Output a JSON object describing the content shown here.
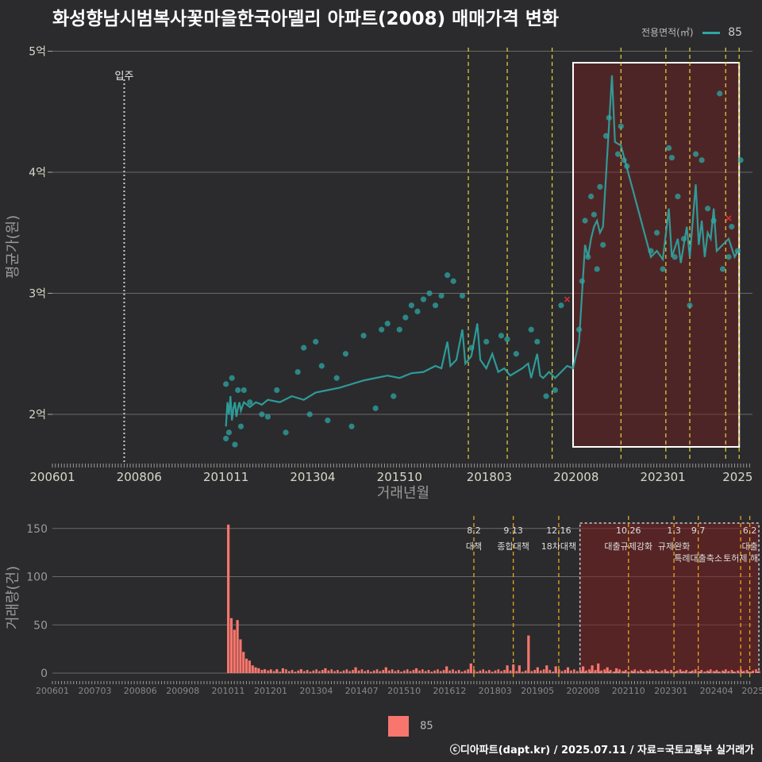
{
  "chart_data": [
    {
      "type": "scatter",
      "title": "화성향남시범복사꽃마을한국아델리 아파트(2008) 매매가격 변화",
      "xlabel": "거래년월",
      "ylabel": "평균가(원)",
      "ylim": [
        1.6,
        5.05
      ],
      "x_tick_labels": [
        "200601",
        "200806",
        "201011",
        "201304",
        "201510",
        "201803",
        "202008",
        "202301",
        "2025"
      ],
      "x_tick_months": [
        0,
        29,
        58,
        87,
        116,
        146,
        175,
        204,
        229
      ],
      "y_ticks": [
        {
          "v": 2,
          "label": "2억"
        },
        {
          "v": 3,
          "label": "3억"
        },
        {
          "v": 4,
          "label": "4억"
        },
        {
          "v": 5,
          "label": "5억"
        }
      ],
      "legend_title": "전용면적(㎡)",
      "legend_label": "85",
      "annotation": {
        "label": "입주",
        "month": 24
      },
      "highlight_range_months": [
        174,
        229.5
      ],
      "policy_lines_months": [
        139,
        152,
        167,
        190,
        205,
        213,
        225,
        229.5
      ],
      "series": [
        {
          "name": "85",
          "line_points": [
            [
              58,
              1.9
            ],
            [
              58.5,
              2.1
            ],
            [
              59,
              2.0
            ],
            [
              59.5,
              2.15
            ],
            [
              60,
              1.95
            ],
            [
              60.5,
              2.05
            ],
            [
              61,
              2.1
            ],
            [
              61.5,
              1.98
            ],
            [
              62,
              2.05
            ],
            [
              62.5,
              2.1
            ],
            [
              63,
              2.03
            ],
            [
              64,
              2.1
            ],
            [
              66,
              2.06
            ],
            [
              68,
              2.1
            ],
            [
              70,
              2.08
            ],
            [
              72,
              2.12
            ],
            [
              76,
              2.1
            ],
            [
              80,
              2.15
            ],
            [
              84,
              2.12
            ],
            [
              88,
              2.18
            ],
            [
              92,
              2.2
            ],
            [
              96,
              2.22
            ],
            [
              100,
              2.25
            ],
            [
              104,
              2.28
            ],
            [
              108,
              2.3
            ],
            [
              112,
              2.32
            ],
            [
              116,
              2.3
            ],
            [
              120,
              2.34
            ],
            [
              124,
              2.35
            ],
            [
              128,
              2.4
            ],
            [
              130,
              2.38
            ],
            [
              132,
              2.6
            ],
            [
              133,
              2.4
            ],
            [
              135,
              2.45
            ],
            [
              137,
              2.7
            ],
            [
              138,
              2.42
            ],
            [
              140,
              2.48
            ],
            [
              142,
              2.75
            ],
            [
              143,
              2.45
            ],
            [
              145,
              2.38
            ],
            [
              147,
              2.5
            ],
            [
              149,
              2.35
            ],
            [
              151,
              2.38
            ],
            [
              153,
              2.32
            ],
            [
              155,
              2.35
            ],
            [
              157,
              2.38
            ],
            [
              159,
              2.42
            ],
            [
              160,
              2.3
            ],
            [
              162,
              2.5
            ],
            [
              163,
              2.32
            ],
            [
              164,
              2.3
            ],
            [
              166,
              2.35
            ],
            [
              168,
              2.3
            ],
            [
              170,
              2.35
            ],
            [
              172,
              2.4
            ],
            [
              174,
              2.38
            ],
            [
              176,
              2.6
            ],
            [
              177,
              3.0
            ],
            [
              178,
              3.4
            ],
            [
              179,
              3.3
            ],
            [
              180,
              3.45
            ],
            [
              181,
              3.55
            ],
            [
              182,
              3.6
            ],
            [
              183,
              3.5
            ],
            [
              184,
              3.55
            ],
            [
              187,
              4.8
            ],
            [
              188,
              4.25
            ],
            [
              190,
              4.22
            ],
            [
              200,
              3.3
            ],
            [
              202,
              3.35
            ],
            [
              204,
              3.28
            ],
            [
              206,
              3.7
            ],
            [
              207,
              3.3
            ],
            [
              209,
              3.45
            ],
            [
              210,
              3.25
            ],
            [
              212,
              3.55
            ],
            [
              213,
              3.3
            ],
            [
              215,
              3.9
            ],
            [
              216,
              3.4
            ],
            [
              217,
              3.6
            ],
            [
              218,
              3.3
            ],
            [
              219,
              3.5
            ],
            [
              220,
              3.45
            ],
            [
              221,
              3.7
            ],
            [
              222,
              3.35
            ],
            [
              224,
              3.4
            ],
            [
              226,
              3.45
            ],
            [
              228,
              3.3
            ],
            [
              229,
              3.35
            ]
          ],
          "scatter_points": [
            [
              58,
              1.8
            ],
            [
              58,
              2.25
            ],
            [
              59,
              1.85
            ],
            [
              60,
              2.3
            ],
            [
              61,
              1.75
            ],
            [
              62,
              2.2
            ],
            [
              63,
              1.9
            ],
            [
              64,
              2.2
            ],
            [
              66,
              2.1
            ],
            [
              70,
              2.0
            ],
            [
              72,
              1.98
            ],
            [
              75,
              2.2
            ],
            [
              78,
              1.85
            ],
            [
              82,
              2.35
            ],
            [
              84,
              2.55
            ],
            [
              86,
              2.0
            ],
            [
              88,
              2.6
            ],
            [
              90,
              2.4
            ],
            [
              92,
              1.95
            ],
            [
              95,
              2.3
            ],
            [
              98,
              2.5
            ],
            [
              100,
              1.9
            ],
            [
              104,
              2.65
            ],
            [
              108,
              2.05
            ],
            [
              110,
              2.7
            ],
            [
              112,
              2.75
            ],
            [
              114,
              2.15
            ],
            [
              116,
              2.7
            ],
            [
              118,
              2.8
            ],
            [
              120,
              2.9
            ],
            [
              122,
              2.85
            ],
            [
              124,
              2.95
            ],
            [
              126,
              3.0
            ],
            [
              128,
              2.9
            ],
            [
              130,
              2.98
            ],
            [
              132,
              3.15
            ],
            [
              134,
              3.1
            ],
            [
              137,
              2.98
            ],
            [
              140,
              2.55
            ],
            [
              145,
              2.6
            ],
            [
              150,
              2.65
            ],
            [
              152,
              2.62
            ],
            [
              155,
              2.5
            ],
            [
              160,
              2.7
            ],
            [
              162,
              2.6
            ],
            [
              165,
              2.15
            ],
            [
              168,
              2.2
            ],
            [
              170,
              2.9
            ],
            [
              176,
              2.7
            ],
            [
              177,
              3.1
            ],
            [
              178,
              3.6
            ],
            [
              179,
              3.3
            ],
            [
              180,
              3.8
            ],
            [
              181,
              3.65
            ],
            [
              182,
              3.2
            ],
            [
              183,
              3.88
            ],
            [
              184,
              3.4
            ],
            [
              185,
              4.3
            ],
            [
              186,
              4.45
            ],
            [
              189,
              4.15
            ],
            [
              190,
              4.38
            ],
            [
              191,
              4.1
            ],
            [
              192,
              4.05
            ],
            [
              200,
              3.35
            ],
            [
              202,
              3.5
            ],
            [
              204,
              3.2
            ],
            [
              206,
              4.2
            ],
            [
              207,
              4.12
            ],
            [
              208,
              3.3
            ],
            [
              209,
              3.8
            ],
            [
              211,
              3.45
            ],
            [
              213,
              2.9
            ],
            [
              215,
              4.15
            ],
            [
              217,
              4.1
            ],
            [
              219,
              3.7
            ],
            [
              221,
              3.6
            ],
            [
              223,
              4.65
            ],
            [
              224,
              3.2
            ],
            [
              226,
              3.3
            ],
            [
              227,
              3.55
            ],
            [
              229,
              3.35
            ],
            [
              230,
              4.1
            ]
          ],
          "red_markers": [
            [
              172,
              2.95
            ],
            [
              226,
              3.62
            ]
          ]
        }
      ]
    },
    {
      "type": "bar",
      "ylabel": "거래량(건)",
      "ylim": [
        0,
        160
      ],
      "y_ticks": [
        0,
        50,
        100,
        150
      ],
      "x_tick_labels": [
        "200601",
        "200703",
        "200806",
        "200908",
        "201011",
        "201201",
        "201304",
        "201407",
        "201510",
        "201612",
        "201803",
        "201905",
        "202008",
        "202110",
        "202301",
        "202404",
        "2025"
      ],
      "x_tick_months": [
        0,
        14,
        29,
        43,
        58,
        72,
        87,
        102,
        116,
        131,
        146,
        160,
        175,
        190,
        204,
        219,
        231
      ],
      "highlight_range_months": [
        174,
        233
      ],
      "series": [
        {
          "name": "85",
          "spikes": [
            [
              58,
              154
            ],
            [
              59,
              57
            ],
            [
              60,
              45
            ],
            [
              61,
              55
            ],
            [
              62,
              35
            ],
            [
              63,
              22
            ],
            [
              64,
              15
            ],
            [
              65,
              13
            ],
            [
              66,
              8
            ],
            [
              67,
              6
            ],
            [
              68,
              5
            ],
            [
              70,
              4
            ],
            [
              72,
              3
            ],
            [
              74,
              4
            ],
            [
              76,
              5
            ],
            [
              82,
              4
            ],
            [
              90,
              5
            ],
            [
              100,
              6
            ],
            [
              110,
              6
            ],
            [
              120,
              5
            ],
            [
              130,
              7
            ],
            [
              138,
              10
            ],
            [
              150,
              8
            ],
            [
              152,
              9
            ],
            [
              154,
              8
            ],
            [
              157,
              39
            ],
            [
              160,
              6
            ],
            [
              163,
              8
            ],
            [
              166,
              7
            ],
            [
              170,
              6
            ],
            [
              175,
              7
            ],
            [
              178,
              8
            ],
            [
              180,
              10
            ],
            [
              183,
              6
            ],
            [
              186,
              5
            ]
          ],
          "baseline_range": [
            68,
            233
          ]
        }
      ],
      "events": [
        {
          "date": "8.2",
          "label": "대책",
          "month": 139
        },
        {
          "date": "9.13",
          "label": "종합대책",
          "month": 152
        },
        {
          "date": "12.16",
          "label": "18차대책",
          "month": 167
        },
        {
          "date": "10.26",
          "label": "대출규제강화",
          "month": 190
        },
        {
          "date": "1.3",
          "label": "규제완화",
          "month": 205
        },
        {
          "date": "9.7",
          "label": "특례대출축소",
          "month": 213
        },
        {
          "date": "",
          "label": "토허제 해",
          "month": 227
        },
        {
          "date": "6.2",
          "label": "대출",
          "month": 230
        }
      ]
    }
  ],
  "header": {
    "title": "화성향남시범복사꽃마을한국아델리 아파트(2008) 매매가격 변화"
  },
  "legend": {
    "title": "전용면적(㎡)",
    "label": "85",
    "line_color": "#2ea7a4",
    "bar_color": "#f8766d"
  },
  "footer": {
    "text": "ⓒ디아파트(dapt.kr) / 2025.07.11 / 자료=국토교통부 실거래가"
  }
}
